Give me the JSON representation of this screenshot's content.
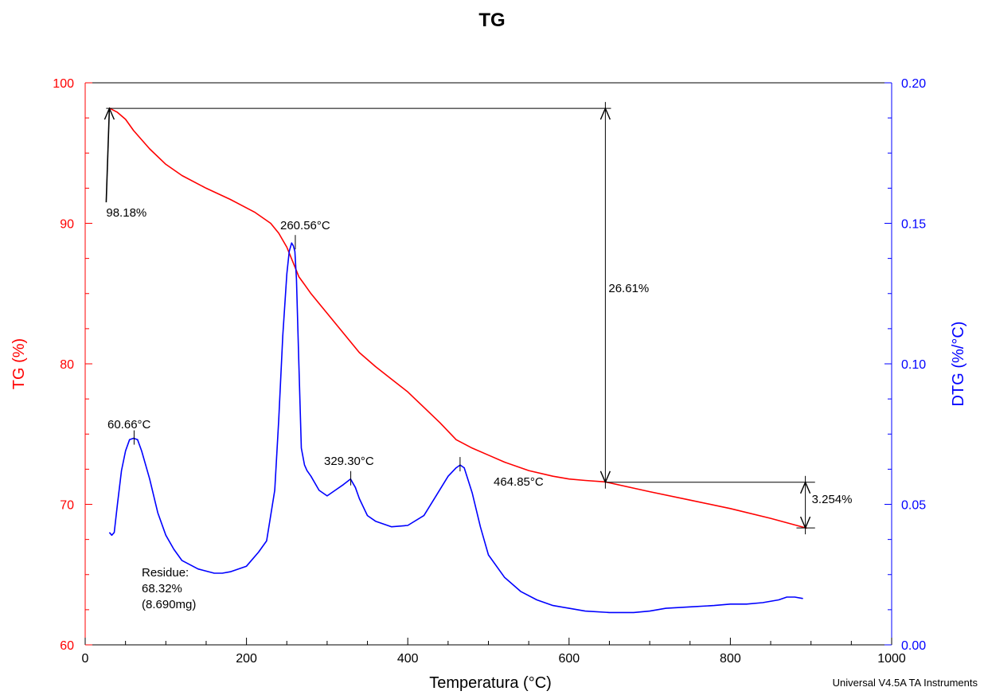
{
  "title": "TG",
  "credit": "Universal V4.5A TA Instruments",
  "colors": {
    "tg": "#ff0000",
    "dtg": "#0000ff",
    "axis": "#000000",
    "annotation": "#000000"
  },
  "chart_data": {
    "type": "line",
    "title": "TG",
    "xlabel": "Temperatura (°C)",
    "ylabel": "TG (%)",
    "y2label": "DTG (%/°C)",
    "xlim": [
      0,
      1000
    ],
    "ylim": [
      60,
      100
    ],
    "y2lim": [
      0.0,
      0.2
    ],
    "xticks": [
      "0",
      "200",
      "400",
      "600",
      "800",
      "1000"
    ],
    "yticks": [
      "60",
      "70",
      "80",
      "90",
      "100"
    ],
    "y2ticks": [
      "0.00",
      "0.05",
      "0.10",
      "0.15",
      "0.20"
    ],
    "grid": false,
    "series": [
      {
        "axis": "left",
        "color": "#ff0000",
        "x": [
          30,
          40,
          50,
          60,
          80,
          100,
          120,
          150,
          180,
          210,
          230,
          240,
          250,
          260,
          265,
          270,
          280,
          300,
          320,
          340,
          360,
          380,
          400,
          420,
          440,
          460,
          480,
          500,
          520,
          550,
          580,
          600,
          620,
          645,
          700,
          750,
          800,
          850,
          895
        ],
        "y": [
          98.2,
          97.9,
          97.4,
          96.6,
          95.3,
          94.2,
          93.4,
          92.5,
          91.7,
          90.8,
          90.0,
          89.3,
          88.3,
          86.9,
          86.2,
          85.8,
          85.0,
          83.6,
          82.2,
          80.8,
          79.8,
          78.9,
          78.0,
          76.9,
          75.8,
          74.6,
          74.0,
          73.5,
          73.0,
          72.4,
          72.0,
          71.8,
          71.7,
          71.6,
          70.9,
          70.3,
          69.7,
          69.0,
          68.3
        ]
      },
      {
        "axis": "right",
        "color": "#0000ff",
        "x": [
          30,
          33,
          36,
          40,
          45,
          50,
          55,
          60,
          65,
          70,
          80,
          90,
          100,
          110,
          120,
          140,
          160,
          170,
          180,
          200,
          215,
          225,
          235,
          240,
          245,
          250,
          253,
          256,
          258,
          260,
          262,
          265,
          268,
          272,
          275,
          280,
          290,
          300,
          310,
          320,
          329,
          335,
          340,
          350,
          360,
          380,
          400,
          420,
          435,
          450,
          460,
          465,
          470,
          480,
          490,
          500,
          520,
          540,
          560,
          580,
          600,
          620,
          650,
          680,
          700,
          720,
          750,
          780,
          800,
          820,
          840,
          860,
          870,
          880,
          890
        ],
        "y": [
          0.04,
          0.039,
          0.04,
          0.05,
          0.062,
          0.069,
          0.073,
          0.0735,
          0.073,
          0.069,
          0.059,
          0.047,
          0.039,
          0.034,
          0.03,
          0.027,
          0.0255,
          0.0255,
          0.026,
          0.028,
          0.033,
          0.037,
          0.055,
          0.08,
          0.11,
          0.132,
          0.14,
          0.143,
          0.142,
          0.14,
          0.13,
          0.1,
          0.07,
          0.064,
          0.062,
          0.06,
          0.055,
          0.053,
          0.055,
          0.057,
          0.059,
          0.056,
          0.052,
          0.046,
          0.044,
          0.042,
          0.0425,
          0.046,
          0.053,
          0.06,
          0.063,
          0.064,
          0.063,
          0.054,
          0.042,
          0.032,
          0.024,
          0.019,
          0.016,
          0.014,
          0.013,
          0.012,
          0.0115,
          0.0115,
          0.012,
          0.013,
          0.0135,
          0.014,
          0.0145,
          0.0145,
          0.015,
          0.016,
          0.017,
          0.017,
          0.0165
        ]
      }
    ],
    "annotations": {
      "start_mass": "98.18%",
      "total_loss": "26.61%",
      "second_loss": "3.254%",
      "peak_260": "260.56°C",
      "peak_60": "60.66°C",
      "peak_329": "329.30°C",
      "peak_464": "464.85°C",
      "residue_1": "Residue:",
      "residue_2": "68.32%",
      "residue_3": "(8.690mg)"
    }
  }
}
